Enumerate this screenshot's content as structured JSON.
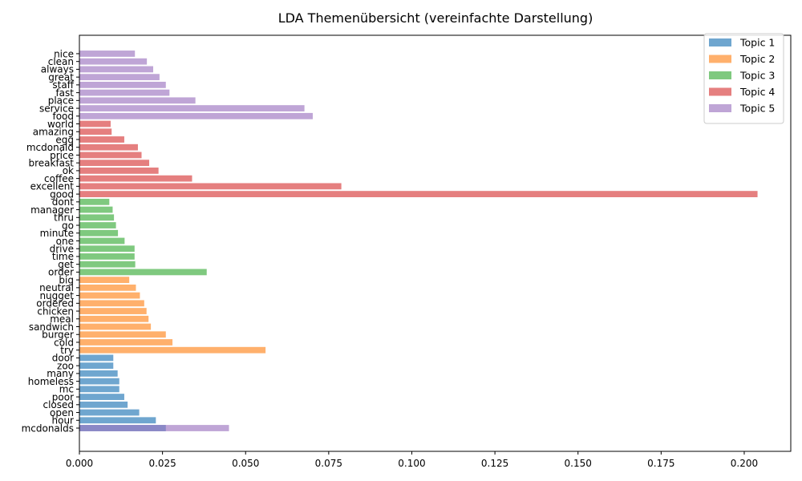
{
  "chart_data": {
    "type": "bar",
    "orientation": "horizontal",
    "title": "LDA Themenübersicht (vereinfachte Darstellung)",
    "xlabel": "",
    "ylabel": "",
    "xlim": [
      0,
      0.214
    ],
    "xticks": [
      "0.000",
      "0.025",
      "0.050",
      "0.075",
      "0.100",
      "0.125",
      "0.150",
      "0.175",
      "0.200"
    ],
    "grid": false,
    "legend_position": "top-right",
    "series": [
      {
        "name": "Topic 1",
        "color": "#6fa6cf",
        "bars": [
          {
            "word": "mcdonalds",
            "value": 0.026
          },
          {
            "word": "hour",
            "value": 0.023
          },
          {
            "word": "open",
            "value": 0.018
          },
          {
            "word": "closed",
            "value": 0.0145
          },
          {
            "word": "poor",
            "value": 0.0135
          },
          {
            "word": "mc",
            "value": 0.012
          },
          {
            "word": "homeless",
            "value": 0.012
          },
          {
            "word": "many",
            "value": 0.0115
          },
          {
            "word": "zoo",
            "value": 0.0102
          },
          {
            "word": "door",
            "value": 0.0102
          }
        ]
      },
      {
        "name": "Topic 2",
        "color": "#ffb06c",
        "bars": [
          {
            "word": "try",
            "value": 0.056
          },
          {
            "word": "cold",
            "value": 0.028
          },
          {
            "word": "burger",
            "value": 0.026
          },
          {
            "word": "sandwich",
            "value": 0.0215
          },
          {
            "word": "meal",
            "value": 0.0208
          },
          {
            "word": "chicken",
            "value": 0.0202
          },
          {
            "word": "ordered",
            "value": 0.0195
          },
          {
            "word": "nugget",
            "value": 0.0182
          },
          {
            "word": "neutral",
            "value": 0.017
          },
          {
            "word": "big",
            "value": 0.015
          }
        ]
      },
      {
        "name": "Topic 3",
        "color": "#7fc97f",
        "bars": [
          {
            "word": "order",
            "value": 0.0383
          },
          {
            "word": "get",
            "value": 0.0168
          },
          {
            "word": "time",
            "value": 0.0166
          },
          {
            "word": "drive",
            "value": 0.0166
          },
          {
            "word": "one",
            "value": 0.0136
          },
          {
            "word": "minute",
            "value": 0.0116
          },
          {
            "word": "go",
            "value": 0.011
          },
          {
            "word": "thru",
            "value": 0.0104
          },
          {
            "word": "manager",
            "value": 0.01
          },
          {
            "word": "dont",
            "value": 0.009
          }
        ]
      },
      {
        "name": "Topic 4",
        "color": "#e57f7f",
        "bars": [
          {
            "word": "good",
            "value": 0.204
          },
          {
            "word": "excellent",
            "value": 0.0788
          },
          {
            "word": "coffee",
            "value": 0.0339
          },
          {
            "word": "ok",
            "value": 0.0238
          },
          {
            "word": "breakfast",
            "value": 0.021
          },
          {
            "word": "price",
            "value": 0.0187
          },
          {
            "word": "mcdonald",
            "value": 0.0176
          },
          {
            "word": "egg",
            "value": 0.0135
          },
          {
            "word": "amazing",
            "value": 0.0097
          },
          {
            "word": "world",
            "value": 0.0094
          }
        ]
      },
      {
        "name": "Topic 5",
        "color": "#bfa5d6",
        "bars": [
          {
            "word": "mcdonalds",
            "value": 0.045
          },
          {
            "word": "food",
            "value": 0.0702
          },
          {
            "word": "service",
            "value": 0.0677
          },
          {
            "word": "place",
            "value": 0.0349
          },
          {
            "word": "fast",
            "value": 0.0271
          },
          {
            "word": "staff",
            "value": 0.026
          },
          {
            "word": "great",
            "value": 0.0241
          },
          {
            "word": "always",
            "value": 0.0222
          },
          {
            "word": "clean",
            "value": 0.0203
          },
          {
            "word": "nice",
            "value": 0.0167
          }
        ]
      }
    ],
    "overlap_color": "#8a88c6"
  }
}
